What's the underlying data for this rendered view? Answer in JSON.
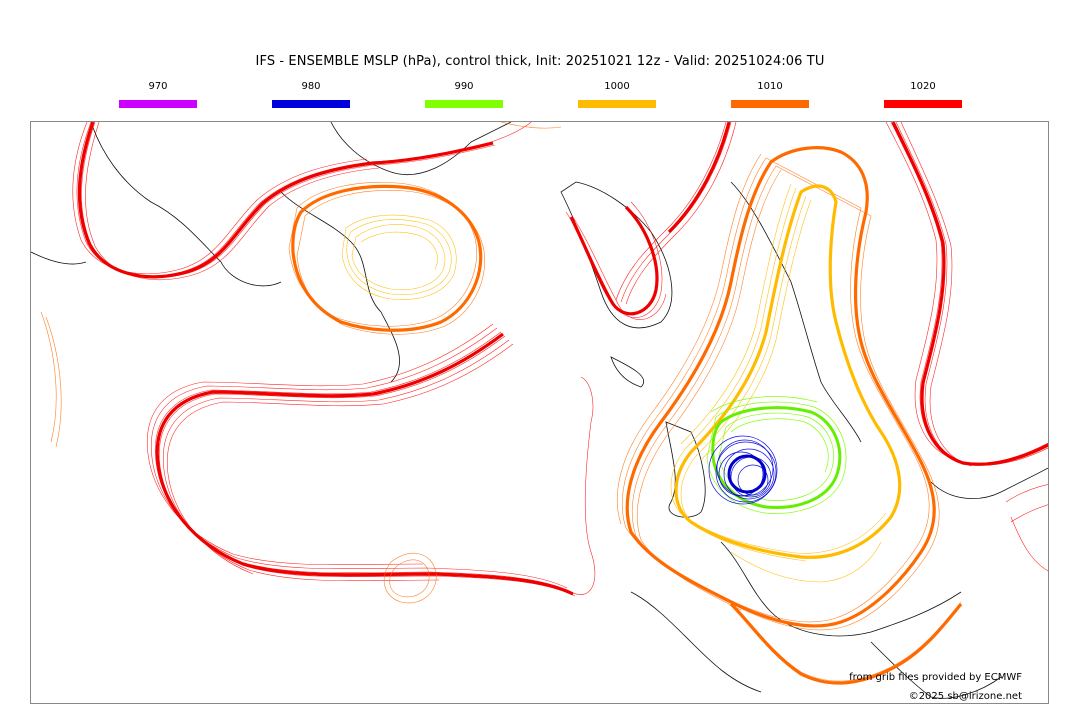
{
  "title": "IFS - ENSEMBLE MSLP (hPa), control thick, Init: 20251021 12z - Valid: 20251024:06 TU",
  "legend": [
    {
      "label": "970",
      "color": "#cc00ff"
    },
    {
      "label": "980",
      "color": "#0000dd"
    },
    {
      "label": "990",
      "color": "#7fff00"
    },
    {
      "label": "1000",
      "color": "#ffbb00"
    },
    {
      "label": "1010",
      "color": "#ff6a00"
    },
    {
      "label": "1020",
      "color": "#ff0000"
    }
  ],
  "credits": {
    "source": "from grib files provided by ECMWF",
    "copyright": "©2025 sb@irizone.net"
  }
}
